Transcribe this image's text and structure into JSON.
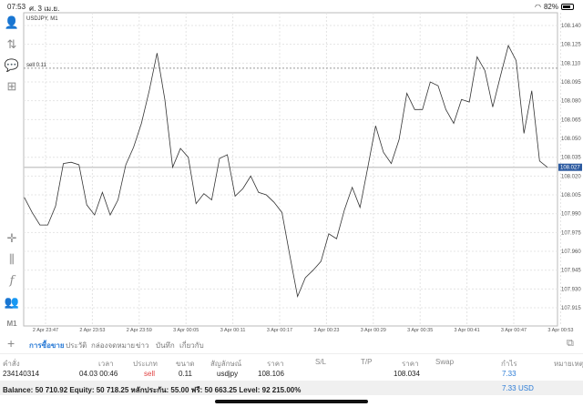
{
  "status": {
    "time": "07:53",
    "date": "ศ. 3 เม.ย.",
    "battery": "82%",
    "battery_level": 0.82
  },
  "chart": {
    "symbol_label": "USDJPY, M1",
    "order_line_label": "sell 0.11",
    "current_price": "108.027",
    "timeframe": "M1"
  },
  "chart_data": {
    "type": "line",
    "title": "USDJPY, M1",
    "price_ticks": [
      "108.140",
      "108.125",
      "108.110",
      "108.095",
      "108.080",
      "108.065",
      "108.050",
      "108.035",
      "108.020",
      "108.005",
      "107.990",
      "107.975",
      "107.960",
      "107.945",
      "107.930",
      "107.915"
    ],
    "time_ticks": [
      "2 Apr 23:47",
      "2 Apr 23:53",
      "2 Apr 23:59",
      "3 Apr 00:05",
      "3 Apr 00:11",
      "3 Apr 00:17",
      "3 Apr 00:23",
      "3 Apr 00:29",
      "3 Apr 00:35",
      "3 Apr 00:41",
      "3 Apr 00:47",
      "3 Apr 00:53"
    ],
    "ylim": [
      107.906,
      108.15
    ],
    "order_price": 108.106,
    "current_price": 108.027,
    "values": [
      108.003,
      107.991,
      107.981,
      107.981,
      107.996,
      108.03,
      108.031,
      108.029,
      107.997,
      107.989,
      108.007,
      107.989,
      108.001,
      108.029,
      108.043,
      108.062,
      108.088,
      108.118,
      108.081,
      108.027,
      108.042,
      108.035,
      107.998,
      108.006,
      108.001,
      108.034,
      108.037,
      108.004,
      108.01,
      108.02,
      108.007,
      108.005,
      107.999,
      107.991,
      107.957,
      107.924,
      107.939,
      107.945,
      107.952,
      107.974,
      107.97,
      107.993,
      108.011,
      107.995,
      108.027,
      108.06,
      108.039,
      108.03,
      108.049,
      108.086,
      108.073,
      108.073,
      108.095,
      108.092,
      108.073,
      108.062,
      108.081,
      108.079,
      108.115,
      108.104,
      108.075,
      108.1,
      108.124,
      108.112,
      108.054,
      108.088,
      108.032,
      108.027
    ]
  },
  "tabs": [
    {
      "label": "การซื้อขาย"
    },
    {
      "label": "ประวัติ"
    },
    {
      "label": "กล่องจดหมาย"
    },
    {
      "label": "ข่าว"
    },
    {
      "label": "บันทึก"
    },
    {
      "label": "เกี่ยวกับ"
    }
  ],
  "table": {
    "headers": [
      "คำสั่ง",
      "เวลา",
      "ประเภท",
      "ขนาด",
      "สัญลักษณ์",
      "ราคา",
      "S/L",
      "T/P",
      "ราคา",
      "Swap",
      "กำไร",
      "หมายเหตุ"
    ],
    "row": [
      "234140314",
      "04.03 00:46",
      "sell",
      "0.11",
      "usdjpy",
      "108.106",
      "",
      "",
      "108.034",
      "",
      "7.33",
      ""
    ]
  },
  "balance": {
    "text": "Balance: 50 710.92 Equity: 50 718.25 หลักประกัน: 55.00 ฟรี: 50 663.25 Level: 92 215.00%",
    "profit": "7.33",
    "currency": "USD"
  },
  "colors": {
    "accent": "#2a7bd6",
    "sell": "#e04040",
    "current_price_bg": "#2c5aa0"
  }
}
